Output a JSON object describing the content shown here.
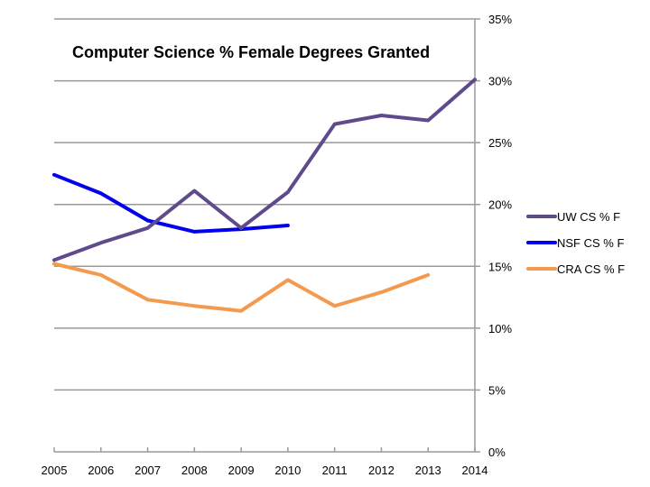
{
  "chart_data": {
    "type": "line",
    "title": "Computer Science % Female Degrees Granted",
    "xlabel": "",
    "ylabel": "",
    "x": [
      2005,
      2006,
      2007,
      2008,
      2009,
      2010,
      2011,
      2012,
      2013,
      2014
    ],
    "x_tick_labels": [
      "2005",
      "2006",
      "2007",
      "2008",
      "2009",
      "2010",
      "2011",
      "2012",
      "2013",
      "2014"
    ],
    "y_ticks": [
      0,
      5,
      10,
      15,
      20,
      25,
      30,
      35
    ],
    "y_tick_labels": [
      "0%",
      "5%",
      "10%",
      "15%",
      "20%",
      "25%",
      "30%",
      "35%"
    ],
    "ylim": [
      0,
      35
    ],
    "y_axis_side": "right",
    "grid": true,
    "legend_position": "right",
    "series": [
      {
        "name": "UW CS % F",
        "color": "#5f4b8b",
        "values": [
          15.5,
          16.9,
          18.1,
          21.1,
          18.1,
          21.0,
          26.5,
          27.2,
          26.8,
          30.1
        ]
      },
      {
        "name": "NSF CS % F",
        "color": "#0000ee",
        "values": [
          22.4,
          20.9,
          18.7,
          17.8,
          18.0,
          18.3,
          null,
          null,
          null,
          null
        ]
      },
      {
        "name": "CRA CS % F",
        "color": "#f39a4f",
        "values": [
          15.2,
          14.3,
          12.3,
          11.8,
          11.4,
          13.9,
          11.8,
          12.9,
          14.3,
          null
        ]
      }
    ]
  }
}
